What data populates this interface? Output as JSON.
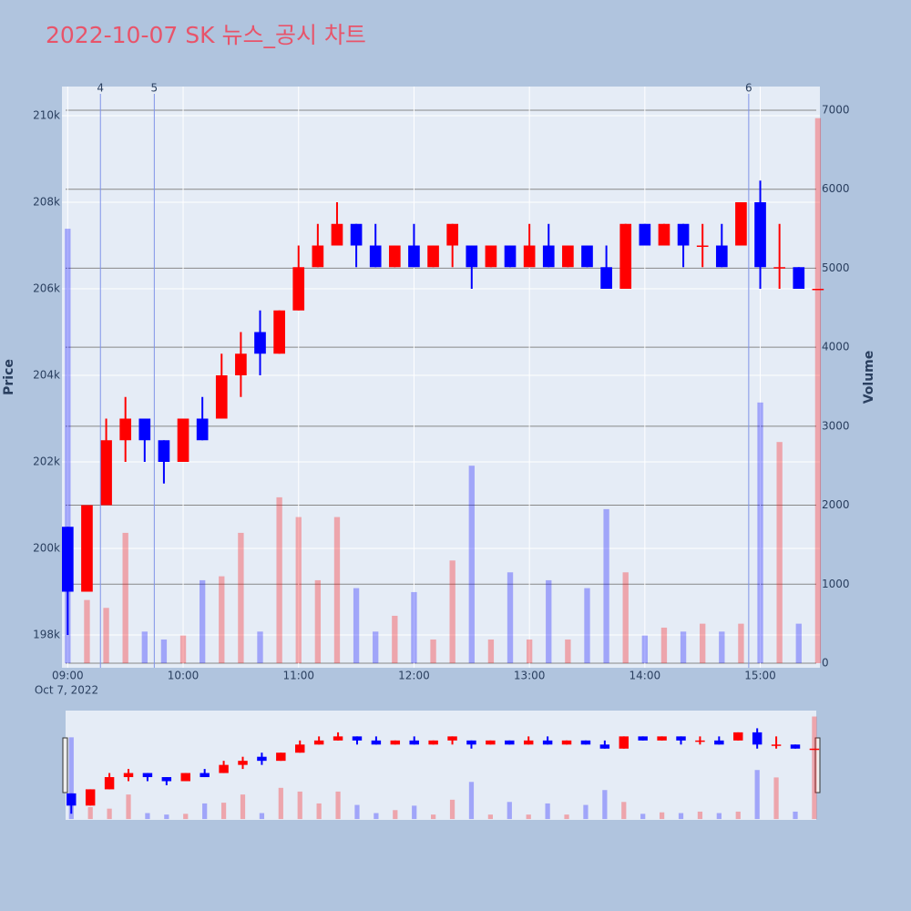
{
  "chart_data": {
    "type": "candlestick",
    "title": "2022-10-07 SK 뉴스_공시 차트",
    "y_label": "Price",
    "y2_label": "Volume",
    "x_date_label": "Oct 7, 2022",
    "up_color": "#ff0000",
    "down_color": "#0000ff",
    "grid": true,
    "x": [
      "09:00",
      "09:10",
      "09:20",
      "09:30",
      "09:40",
      "09:50",
      "10:00",
      "10:10",
      "10:20",
      "10:30",
      "10:40",
      "10:50",
      "11:00",
      "11:10",
      "11:20",
      "11:30",
      "11:40",
      "11:50",
      "12:00",
      "12:10",
      "12:20",
      "12:30",
      "12:40",
      "12:50",
      "13:00",
      "13:10",
      "13:20",
      "13:30",
      "13:40",
      "13:50",
      "14:00",
      "14:10",
      "14:20",
      "14:30",
      "14:40",
      "14:50",
      "15:00",
      "15:10",
      "15:20",
      "15:30"
    ],
    "open": [
      200500,
      199000,
      201000,
      202500,
      203000,
      202500,
      202000,
      203000,
      203000,
      204000,
      205000,
      204500,
      205500,
      206500,
      207000,
      207500,
      207000,
      206500,
      207000,
      206500,
      207000,
      207000,
      206500,
      207000,
      206500,
      207000,
      206500,
      207000,
      206500,
      206000,
      207500,
      207000,
      207500,
      207000,
      207000,
      207000,
      208000,
      206500,
      206500,
      206000
    ],
    "high": [
      200500,
      201000,
      203000,
      203500,
      203000,
      202500,
      203000,
      203500,
      204500,
      205000,
      205500,
      205500,
      207000,
      207500,
      208000,
      207500,
      207500,
      207000,
      207500,
      207000,
      207500,
      207000,
      207000,
      207000,
      207500,
      207500,
      207000,
      207000,
      207000,
      207500,
      207500,
      207500,
      207500,
      207500,
      207500,
      208000,
      208500,
      207500,
      206500,
      206000
    ],
    "low": [
      198000,
      199000,
      201000,
      202000,
      202000,
      201500,
      202000,
      202500,
      203000,
      203500,
      204000,
      204500,
      205500,
      206500,
      207000,
      206500,
      206500,
      206500,
      206500,
      206500,
      206500,
      206000,
      206500,
      206500,
      206500,
      206500,
      206500,
      206500,
      206000,
      206000,
      207000,
      207000,
      206500,
      206500,
      206500,
      207000,
      206000,
      206000,
      206000,
      206000
    ],
    "close": [
      199000,
      201000,
      202500,
      203000,
      202500,
      202000,
      203000,
      202500,
      204000,
      204500,
      204500,
      205500,
      206500,
      207000,
      207500,
      207000,
      206500,
      207000,
      206500,
      207000,
      207500,
      206500,
      207000,
      206500,
      207000,
      206500,
      207000,
      206500,
      206000,
      207500,
      207000,
      207500,
      207000,
      207000,
      206500,
      208000,
      206500,
      206500,
      206000,
      206000
    ],
    "volume": [
      5500,
      800,
      700,
      1650,
      400,
      300,
      350,
      1050,
      1100,
      1650,
      400,
      2100,
      1850,
      1050,
      1850,
      950,
      400,
      600,
      900,
      300,
      1300,
      2500,
      300,
      1150,
      300,
      1050,
      300,
      950,
      1950,
      1150,
      350,
      450,
      400,
      500,
      400,
      500,
      3300,
      2800,
      500,
      6900
    ],
    "xlim": [
      "08:57",
      "15:31"
    ],
    "xticks": [
      "09:00",
      "10:00",
      "11:00",
      "12:00",
      "13:00",
      "14:00",
      "15:00"
    ],
    "ylim": [
      197242,
      210674
    ],
    "yticks": [
      {
        "value": 198000,
        "label": "198k"
      },
      {
        "value": 200000,
        "label": "200k"
      },
      {
        "value": 202000,
        "label": "202k"
      },
      {
        "value": 204000,
        "label": "204k"
      },
      {
        "value": 206000,
        "label": "206k"
      },
      {
        "value": 208000,
        "label": "208k"
      },
      {
        "value": 210000,
        "label": "210k"
      }
    ],
    "y2lim": [
      -58,
      7300
    ],
    "y2ticks": [
      0,
      1000,
      2000,
      3000,
      4000,
      5000,
      6000,
      7000
    ],
    "events": [
      {
        "x": "09:17",
        "label": "4"
      },
      {
        "x": "09:45",
        "label": "5"
      },
      {
        "x": "14:54",
        "label": "6"
      }
    ]
  }
}
